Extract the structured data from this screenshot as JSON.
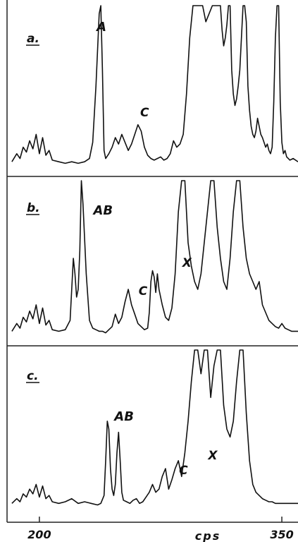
{
  "chart_data": {
    "type": "line",
    "xlabel": "cps",
    "x_ticks": [
      200,
      350
    ],
    "x_range": [
      180,
      360
    ],
    "panels": [
      {
        "label": "a.",
        "annotations": [
          {
            "text": "A",
            "x": 238
          },
          {
            "text": "C",
            "x": 265
          }
        ],
        "series": [
          {
            "x": [
              183,
              186,
              188,
              190,
              192,
              194,
              196,
              198,
              200,
              202,
              204,
              206,
              208,
              212,
              216,
              220,
              224,
              228,
              231,
              233,
              235,
              237,
              238,
              239,
              240,
              241,
              243,
              245,
              247,
              249,
              251,
              253,
              255,
              257,
              259,
              261,
              263,
              265,
              267,
              269,
              271,
              273,
              275,
              277,
              279,
              281,
              283,
              285,
              287,
              289,
              291,
              293,
              295,
              297,
              299,
              301,
              303,
              305,
              307,
              309,
              311,
              312,
              313,
              314,
              315,
              316,
              317,
              318,
              319,
              320,
              321,
              322,
              323,
              324,
              325,
              326,
              327,
              328,
              329,
              330,
              331,
              332,
              333,
              334,
              335,
              336,
              337,
              338,
              339,
              340,
              341,
              342,
              343,
              344,
              345,
              346,
              347,
              348,
              349,
              350,
              351,
              352,
              353,
              354,
              355,
              357,
              360
            ],
            "y": [
              0.03,
              0.08,
              0.05,
              0.12,
              0.09,
              0.16,
              0.11,
              0.2,
              0.08,
              0.18,
              0.07,
              0.1,
              0.04,
              0.03,
              0.02,
              0.03,
              0.02,
              0.03,
              0.05,
              0.15,
              0.5,
              0.95,
              1.0,
              0.6,
              0.1,
              0.05,
              0.08,
              0.12,
              0.18,
              0.14,
              0.2,
              0.15,
              0.1,
              0.14,
              0.2,
              0.26,
              0.22,
              0.12,
              0.07,
              0.05,
              0.04,
              0.05,
              0.06,
              0.04,
              0.05,
              0.08,
              0.16,
              0.12,
              0.14,
              0.2,
              0.45,
              0.8,
              1.0,
              1.0,
              1.0,
              1.0,
              0.9,
              0.95,
              1.0,
              1.0,
              1.0,
              1.0,
              0.85,
              0.75,
              0.8,
              0.88,
              1.0,
              1.0,
              0.6,
              0.45,
              0.38,
              0.42,
              0.5,
              0.6,
              0.8,
              1.0,
              1.0,
              0.9,
              0.5,
              0.35,
              0.25,
              0.2,
              0.18,
              0.22,
              0.3,
              0.25,
              0.2,
              0.18,
              0.15,
              0.12,
              0.14,
              0.1,
              0.08,
              0.12,
              0.4,
              0.8,
              1.0,
              1.0,
              0.4,
              0.15,
              0.08,
              0.1,
              0.06,
              0.05,
              0.04,
              0.05,
              0.03
            ]
          }
        ]
      },
      {
        "label": "b.",
        "annotations": [
          {
            "text": "AB",
            "x": 236
          },
          {
            "text": "C",
            "x": 264
          },
          {
            "text": "X",
            "x": 291
          }
        ],
        "series": [
          {
            "x": [
              183,
              186,
              188,
              190,
              192,
              194,
              196,
              198,
              200,
              202,
              204,
              206,
              208,
              212,
              216,
              219,
              220,
              221,
              222,
              223,
              224,
              225,
              226,
              227,
              229,
              231,
              233,
              235,
              237,
              239,
              241,
              243,
              245,
              247,
              249,
              251,
              253,
              255,
              257,
              259,
              261,
              263,
              265,
              267,
              268,
              269,
              270,
              271,
              272,
              273,
              274,
              276,
              278,
              280,
              282,
              284,
              286,
              288,
              290,
              292,
              294,
              296,
              298,
              300,
              302,
              304,
              306,
              308,
              310,
              312,
              314,
              316,
              318,
              320,
              322,
              324,
              326,
              328,
              330,
              332,
              334,
              336,
              338,
              340,
              342,
              344,
              346,
              348,
              350,
              352,
              354,
              356,
              358,
              360
            ],
            "y": [
              0.03,
              0.08,
              0.05,
              0.12,
              0.09,
              0.16,
              0.11,
              0.2,
              0.08,
              0.18,
              0.07,
              0.1,
              0.04,
              0.03,
              0.04,
              0.1,
              0.3,
              0.5,
              0.4,
              0.25,
              0.3,
              0.55,
              1.0,
              0.85,
              0.4,
              0.1,
              0.05,
              0.04,
              0.03,
              0.03,
              0.02,
              0.04,
              0.06,
              0.14,
              0.08,
              0.12,
              0.22,
              0.3,
              0.2,
              0.14,
              0.08,
              0.06,
              0.04,
              0.05,
              0.15,
              0.35,
              0.42,
              0.38,
              0.28,
              0.4,
              0.3,
              0.2,
              0.12,
              0.1,
              0.18,
              0.4,
              0.8,
              1.0,
              1.0,
              0.6,
              0.45,
              0.35,
              0.3,
              0.4,
              0.6,
              0.8,
              1.0,
              1.0,
              0.7,
              0.5,
              0.35,
              0.3,
              0.5,
              0.8,
              1.0,
              1.0,
              0.7,
              0.5,
              0.4,
              0.35,
              0.3,
              0.35,
              0.2,
              0.15,
              0.1,
              0.08,
              0.06,
              0.05,
              0.08,
              0.05,
              0.04,
              0.03,
              0.03,
              0.03
            ]
          }
        ]
      },
      {
        "label": "c.",
        "annotations": [
          {
            "text": "AB",
            "x": 249
          },
          {
            "text": "C",
            "x": 289
          },
          {
            "text": "X",
            "x": 307
          }
        ],
        "series": [
          {
            "x": [
              183,
              186,
              188,
              190,
              192,
              194,
              196,
              198,
              200,
              202,
              204,
              206,
              208,
              212,
              216,
              220,
              224,
              228,
              232,
              236,
              238,
              240,
              241,
              242,
              243,
              244,
              245,
              246,
              247,
              248,
              249,
              250,
              251,
              252,
              254,
              256,
              258,
              260,
              262,
              264,
              266,
              268,
              270,
              272,
              274,
              276,
              278,
              280,
              282,
              284,
              286,
              288,
              290,
              292,
              294,
              296,
              298,
              300,
              302,
              304,
              306,
              308,
              310,
              312,
              314,
              316,
              318,
              320,
              322,
              324,
              326,
              328,
              330,
              332,
              334,
              336,
              338,
              340,
              342,
              344,
              346,
              348,
              350,
              352,
              354,
              356,
              358,
              360
            ],
            "y": [
              0.03,
              0.06,
              0.04,
              0.09,
              0.07,
              0.12,
              0.09,
              0.15,
              0.07,
              0.14,
              0.06,
              0.08,
              0.04,
              0.03,
              0.04,
              0.06,
              0.03,
              0.04,
              0.03,
              0.02,
              0.03,
              0.08,
              0.3,
              0.55,
              0.5,
              0.25,
              0.12,
              0.08,
              0.15,
              0.35,
              0.48,
              0.3,
              0.1,
              0.05,
              0.04,
              0.03,
              0.05,
              0.06,
              0.03,
              0.04,
              0.07,
              0.1,
              0.15,
              0.1,
              0.12,
              0.2,
              0.25,
              0.12,
              0.18,
              0.25,
              0.3,
              0.2,
              0.35,
              0.55,
              0.8,
              1.0,
              1.0,
              0.85,
              1.0,
              1.0,
              0.7,
              0.9,
              1.0,
              1.0,
              0.65,
              0.5,
              0.45,
              0.55,
              0.8,
              1.0,
              1.0,
              0.6,
              0.3,
              0.15,
              0.1,
              0.08,
              0.06,
              0.05,
              0.04,
              0.04,
              0.03,
              0.03,
              0.03,
              0.03,
              0.03,
              0.03,
              0.03,
              0.03
            ]
          }
        ]
      }
    ]
  }
}
